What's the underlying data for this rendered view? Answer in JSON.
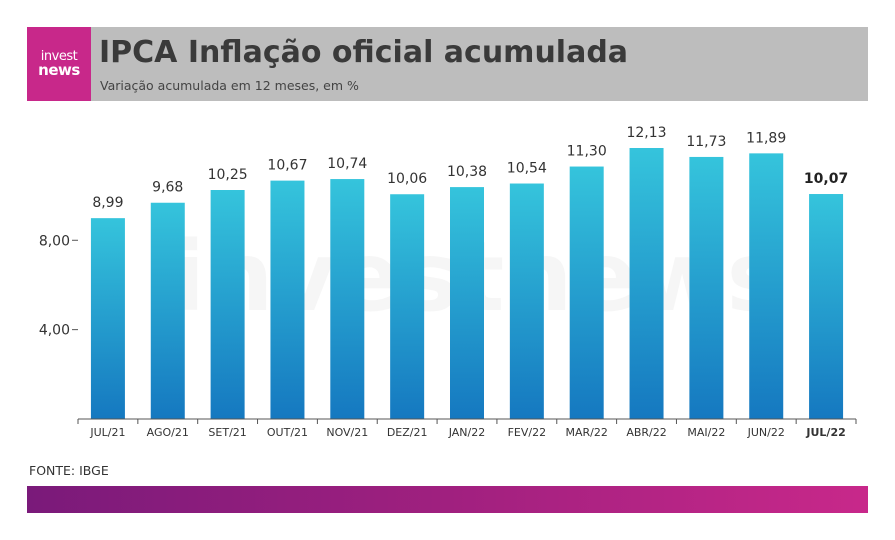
{
  "header": {
    "logo_line1": "invest",
    "logo_line2": "news",
    "title": "IPCA Inflação oficial acumulada",
    "subtitle": "Variação acumulada em 12 meses, em %"
  },
  "watermark": "investnews",
  "source": "FONTE: IBGE",
  "colors": {
    "header_bg": "#bdbdbd",
    "logo_bg": "#c8288a",
    "bar_top": "#35c4dc",
    "bar_bottom": "#1578c0",
    "footer_start": "#7a1a7a",
    "footer_end": "#c8288a"
  },
  "chart_data": {
    "type": "bar",
    "categories": [
      "JUL/21",
      "AGO/21",
      "SET/21",
      "OUT/21",
      "NOV/21",
      "DEZ/21",
      "JAN/22",
      "FEV/22",
      "MAR/22",
      "ABR/22",
      "MAI/22",
      "JUN/22",
      "JUL/22"
    ],
    "values": [
      8.99,
      9.68,
      10.25,
      10.67,
      10.74,
      10.06,
      10.38,
      10.54,
      11.3,
      12.13,
      11.73,
      11.89,
      10.07
    ],
    "value_labels": [
      "8,99",
      "9,68",
      "10,25",
      "10,67",
      "10,74",
      "10,06",
      "10,38",
      "10,54",
      "11,30",
      "12,13",
      "11,73",
      "11,89",
      "10,07"
    ],
    "highlight_index": 12,
    "yticks": [
      4,
      8
    ],
    "ytick_labels": [
      "4,00",
      "8,00"
    ],
    "ylim": [
      0,
      12.13
    ],
    "grid": false,
    "xlabel": "",
    "ylabel": ""
  }
}
